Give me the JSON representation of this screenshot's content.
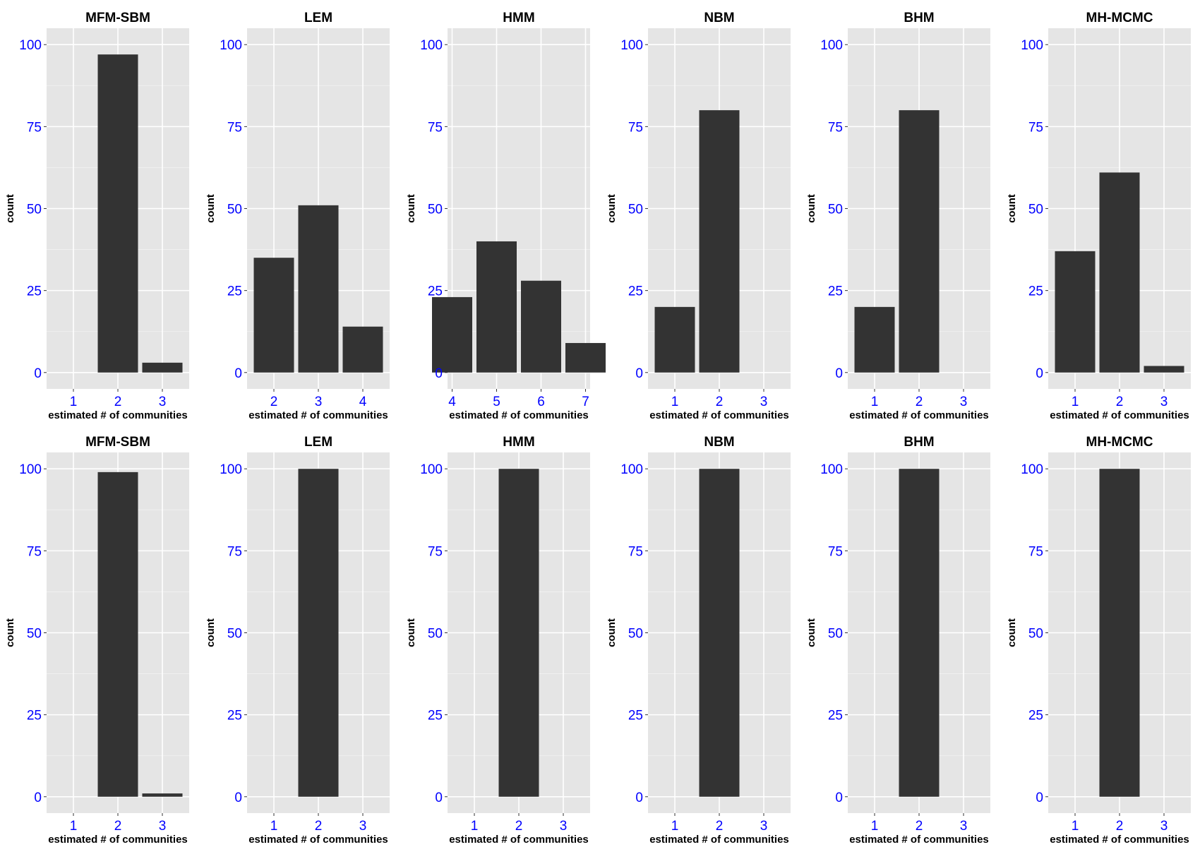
{
  "chart_data": [
    {
      "type": "bar",
      "title": "MFM-SBM",
      "xlabel": "estimated # of communities",
      "ylabel": "count",
      "categories": [
        "1",
        "2",
        "3"
      ],
      "values": [
        0,
        97,
        3
      ],
      "ylim": [
        0,
        100
      ],
      "yticks": [
        0,
        25,
        50,
        75,
        100
      ]
    },
    {
      "type": "bar",
      "title": "LEM",
      "xlabel": "estimated # of communities",
      "ylabel": "count",
      "categories": [
        "2",
        "3",
        "4"
      ],
      "values": [
        35,
        51,
        14
      ],
      "ylim": [
        0,
        100
      ],
      "yticks": [
        0,
        25,
        50,
        75,
        100
      ]
    },
    {
      "type": "bar",
      "title": "HMM",
      "xlabel": "estimated # of communities",
      "ylabel": "count",
      "categories": [
        "4",
        "5",
        "6",
        "7"
      ],
      "values": [
        23,
        40,
        28,
        9
      ],
      "ylim": [
        0,
        100
      ],
      "yticks": [
        0,
        25,
        50,
        75,
        100
      ]
    },
    {
      "type": "bar",
      "title": "NBM",
      "xlabel": "estimated # of communities",
      "ylabel": "count",
      "categories": [
        "1",
        "2",
        "3"
      ],
      "values": [
        20,
        80,
        0
      ],
      "ylim": [
        0,
        100
      ],
      "yticks": [
        0,
        25,
        50,
        75,
        100
      ]
    },
    {
      "type": "bar",
      "title": "BHM",
      "xlabel": "estimated # of communities",
      "ylabel": "count",
      "categories": [
        "1",
        "2",
        "3"
      ],
      "values": [
        20,
        80,
        0
      ],
      "ylim": [
        0,
        100
      ],
      "yticks": [
        0,
        25,
        50,
        75,
        100
      ]
    },
    {
      "type": "bar",
      "title": "MH-MCMC",
      "xlabel": "estimated # of communities",
      "ylabel": "count",
      "categories": [
        "1",
        "2",
        "3"
      ],
      "values": [
        37,
        61,
        2
      ],
      "ylim": [
        0,
        100
      ],
      "yticks": [
        0,
        25,
        50,
        75,
        100
      ]
    },
    {
      "type": "bar",
      "title": "MFM-SBM",
      "xlabel": "estimated # of communities",
      "ylabel": "count",
      "categories": [
        "1",
        "2",
        "3"
      ],
      "values": [
        0,
        99,
        1
      ],
      "ylim": [
        0,
        100
      ],
      "yticks": [
        0,
        25,
        50,
        75,
        100
      ]
    },
    {
      "type": "bar",
      "title": "LEM",
      "xlabel": "estimated # of communities",
      "ylabel": "count",
      "categories": [
        "1",
        "2",
        "3"
      ],
      "values": [
        0,
        100,
        0
      ],
      "ylim": [
        0,
        100
      ],
      "yticks": [
        0,
        25,
        50,
        75,
        100
      ]
    },
    {
      "type": "bar",
      "title": "HMM",
      "xlabel": "estimated # of communities",
      "ylabel": "count",
      "categories": [
        "1",
        "2",
        "3"
      ],
      "values": [
        0,
        100,
        0
      ],
      "ylim": [
        0,
        100
      ],
      "yticks": [
        0,
        25,
        50,
        75,
        100
      ]
    },
    {
      "type": "bar",
      "title": "NBM",
      "xlabel": "estimated # of communities",
      "ylabel": "count",
      "categories": [
        "1",
        "2",
        "3"
      ],
      "values": [
        0,
        100,
        0
      ],
      "ylim": [
        0,
        100
      ],
      "yticks": [
        0,
        25,
        50,
        75,
        100
      ]
    },
    {
      "type": "bar",
      "title": "BHM",
      "xlabel": "estimated # of communities",
      "ylabel": "count",
      "categories": [
        "1",
        "2",
        "3"
      ],
      "values": [
        0,
        100,
        0
      ],
      "ylim": [
        0,
        100
      ],
      "yticks": [
        0,
        25,
        50,
        75,
        100
      ]
    },
    {
      "type": "bar",
      "title": "MH-MCMC",
      "xlabel": "estimated # of communities",
      "ylabel": "count",
      "categories": [
        "1",
        "2",
        "3"
      ],
      "values": [
        0,
        100,
        0
      ],
      "ylim": [
        0,
        100
      ],
      "yticks": [
        0,
        25,
        50,
        75,
        100
      ]
    }
  ],
  "colors": {
    "panel_background": "#e5e5e5",
    "bar_fill": "#333333",
    "tick_label": "#0000ff",
    "grid": "#ffffff"
  }
}
